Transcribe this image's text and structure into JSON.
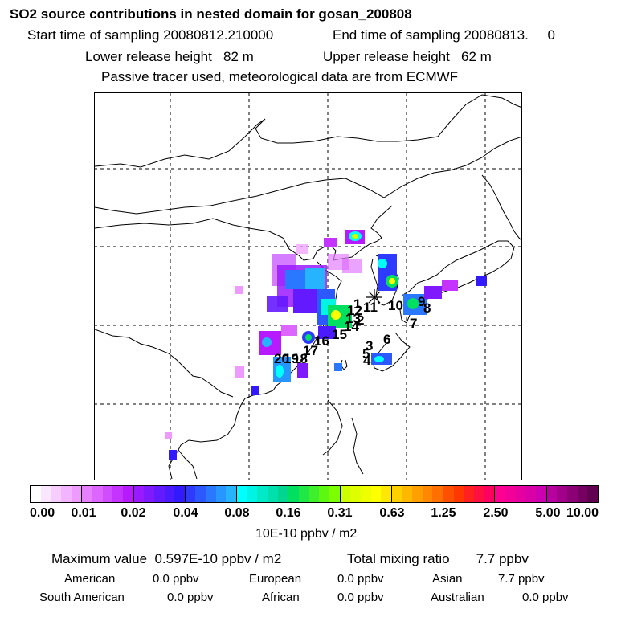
{
  "header": {
    "title": "SO2 source contributions in nested domain for gosan_200808",
    "start": "Start time of sampling 20080812.210000",
    "end": "End time of sampling 20080813.     0",
    "lower": "Lower release height   82 m",
    "upper": "Upper release height   62 m",
    "tracer": "Passive tracer used, meteorological data are from ECMWF"
  },
  "map": {
    "site_labels": [
      "1",
      "2",
      "3",
      "4",
      "5",
      "6",
      "7",
      "8",
      "9",
      "10",
      "11",
      "12",
      "13",
      "14",
      "15",
      "16",
      "17",
      "18",
      "19",
      "20"
    ]
  },
  "colorbar": {
    "ticks": [
      "0.00",
      "0.01",
      "0.02",
      "0.04",
      "0.08",
      "0.16",
      "0.31",
      "0.63",
      "1.25",
      "2.50",
      "5.00",
      "10.00"
    ],
    "unit": "10E-10 ppbv / m2",
    "colors": [
      [
        "#ffffff",
        "#fbe6ff",
        "#f7cdff",
        "#f2b3ff",
        "#ee9aff"
      ],
      [
        "#e680ff",
        "#dc66ff",
        "#d04dff",
        "#c433ff",
        "#b81aff"
      ],
      [
        "#9a1aff",
        "#7f1aff",
        "#641aff",
        "#4b1aff",
        "#321aff"
      ],
      [
        "#2e3aff",
        "#2c58ff",
        "#2a78ff",
        "#2896ff",
        "#26b4ff"
      ],
      [
        "#00ffff",
        "#00f4e4",
        "#00eac8",
        "#00e0ac",
        "#00d690"
      ],
      [
        "#00e060",
        "#1fe846",
        "#3ef02c",
        "#5df812",
        "#7cff00"
      ],
      [
        "#ccff00",
        "#ddff00",
        "#eeff00",
        "#ffff00",
        "#ffe800"
      ],
      [
        "#ffd000",
        "#ffb800",
        "#ffa000",
        "#ff8800",
        "#ff7000"
      ],
      [
        "#ff5000",
        "#ff3800",
        "#ff2020",
        "#ff1040",
        "#ff0060"
      ],
      [
        "#ff0090",
        "#f20098",
        "#e600a0",
        "#d900a8",
        "#cc00b0"
      ],
      [
        "#b8009e",
        "#a2008a",
        "#8c0076",
        "#760062",
        "#60004e"
      ]
    ]
  },
  "summary": {
    "max": "Maximum value  0.597E-10 ppbv / m2",
    "total": "Total mixing ratio       7.7 ppbv",
    "regions": [
      {
        "name": "American",
        "value": "0.0 ppbv"
      },
      {
        "name": "European",
        "value": "0.0 ppbv"
      },
      {
        "name": "Asian",
        "value": "7.7 ppbv"
      },
      {
        "name": "South American",
        "value": "0.0 ppbv"
      },
      {
        "name": "African",
        "value": "0.0 ppbv"
      },
      {
        "name": "Australian",
        "value": "0.0 ppbv"
      }
    ]
  }
}
